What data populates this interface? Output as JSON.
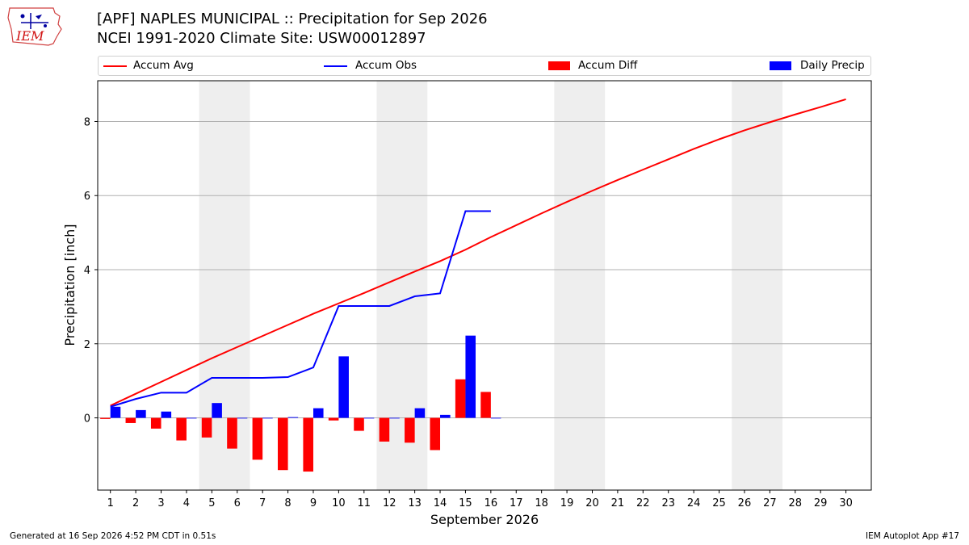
{
  "header": {
    "title_line1": "[APF] NAPLES MUNICIPAL :: Precipitation for Sep 2026",
    "title_line2": "NCEI 1991-2020 Climate Site: USW00012897"
  },
  "logo": {
    "text": "IEM"
  },
  "legend": {
    "items": [
      {
        "label": "Accum Avg",
        "kind": "line",
        "color": "#ff0000"
      },
      {
        "label": "Accum Obs",
        "kind": "line",
        "color": "#0000ff"
      },
      {
        "label": "Accum Diff",
        "kind": "bar",
        "color": "#ff0000"
      },
      {
        "label": "Daily Precip",
        "kind": "bar",
        "color": "#0000ff"
      }
    ]
  },
  "footer": {
    "generated": "Generated at 16 Sep 2026 4:52 PM CDT in 0.51s",
    "app": "IEM Autoplot App #17"
  },
  "chart_data": {
    "type": "bar",
    "xlabel": "September 2026",
    "ylabel": "Precipitation [inch]",
    "xlim": [
      0.5,
      31.0
    ],
    "ylim": [
      -1.95,
      9.1
    ],
    "yticks": [
      0,
      2,
      4,
      6,
      8
    ],
    "xticks": [
      1,
      2,
      3,
      4,
      5,
      6,
      7,
      8,
      9,
      10,
      11,
      12,
      13,
      14,
      15,
      16,
      17,
      18,
      19,
      20,
      21,
      22,
      23,
      24,
      25,
      26,
      27,
      28,
      29,
      30
    ],
    "grid": "horizontal",
    "weekend_shading": [
      [
        4.5,
        6.5
      ],
      [
        11.5,
        13.5
      ],
      [
        18.5,
        20.5
      ],
      [
        25.5,
        27.5
      ]
    ],
    "colors": {
      "avg": "#ff0000",
      "obs": "#0000ff",
      "diff": "#ff0000",
      "daily": "#0000ff",
      "shade": "#eeeeee"
    },
    "days": [
      1,
      2,
      3,
      4,
      5,
      6,
      7,
      8,
      9,
      10,
      11,
      12,
      13,
      14,
      15,
      16,
      17,
      18,
      19,
      20,
      21,
      22,
      23,
      24,
      25,
      26,
      27,
      28,
      29,
      30
    ],
    "series": [
      {
        "name": "Accum Avg",
        "type": "line",
        "values": [
          0.33,
          0.65,
          0.97,
          1.29,
          1.61,
          1.91,
          2.21,
          2.51,
          2.81,
          3.09,
          3.37,
          3.66,
          3.95,
          4.23,
          4.54,
          4.88,
          5.2,
          5.52,
          5.83,
          6.13,
          6.42,
          6.7,
          6.98,
          7.26,
          7.52,
          7.76,
          7.98,
          8.19,
          8.39,
          8.6
        ]
      },
      {
        "name": "Accum Obs",
        "type": "line",
        "values": [
          0.3,
          0.51,
          0.68,
          0.68,
          1.08,
          1.08,
          1.08,
          1.1,
          1.36,
          3.02,
          3.02,
          3.02,
          3.28,
          3.36,
          5.58,
          5.58
        ]
      },
      {
        "name": "Accum Diff",
        "type": "bar",
        "values": [
          -0.03,
          -0.14,
          -0.29,
          -0.61,
          -0.53,
          -0.83,
          -1.13,
          -1.41,
          -1.45,
          -0.07,
          -0.35,
          -0.64,
          -0.67,
          -0.87,
          1.04,
          0.7
        ]
      },
      {
        "name": "Daily Precip",
        "type": "bar",
        "values": [
          0.3,
          0.21,
          0.17,
          0.0,
          0.4,
          0.0,
          0.0,
          0.02,
          0.26,
          1.66,
          0.0,
          0.0,
          0.26,
          0.08,
          2.22,
          0.0
        ]
      }
    ]
  }
}
